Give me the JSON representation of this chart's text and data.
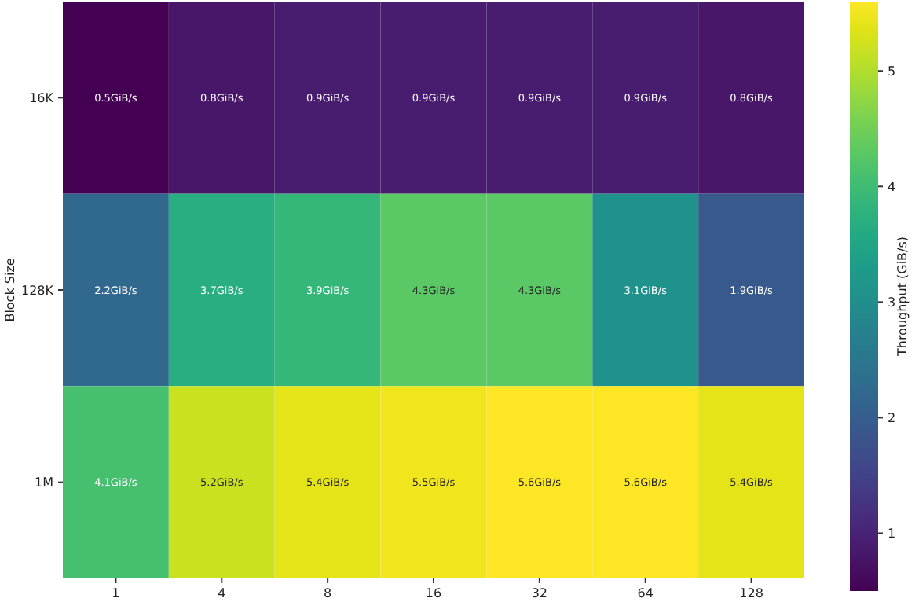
{
  "chart_data": {
    "type": "heatmap",
    "xlabel": null,
    "ylabel": "Block Size",
    "clabel": "Throughput (GiB/s)",
    "categories": [
      "1",
      "4",
      "8",
      "16",
      "32",
      "64",
      "128"
    ],
    "y_categories": [
      "16K",
      "128K",
      "1M"
    ],
    "cells": [
      [
        0.5,
        0.8,
        0.9,
        0.9,
        0.9,
        0.9,
        0.8
      ],
      [
        2.2,
        3.7,
        3.9,
        4.3,
        4.3,
        3.1,
        1.9
      ],
      [
        4.1,
        5.2,
        5.4,
        5.5,
        5.6,
        5.6,
        5.4
      ]
    ],
    "cell_labels": [
      [
        "0.5GiB/s",
        "0.8GiB/s",
        "0.9GiB/s",
        "0.9GiB/s",
        "0.9GiB/s",
        "0.9GiB/s",
        "0.8GiB/s"
      ],
      [
        "2.2GiB/s",
        "3.7GiB/s",
        "3.9GiB/s",
        "4.3GiB/s",
        "4.3GiB/s",
        "3.1GiB/s",
        "1.9GiB/s"
      ],
      [
        "4.1GiB/s",
        "5.2GiB/s",
        "5.4GiB/s",
        "5.5GiB/s",
        "5.6GiB/s",
        "5.6GiB/s",
        "5.4GiB/s"
      ]
    ],
    "clim": [
      0.5,
      5.6
    ],
    "cticks": [
      1,
      2,
      3,
      4,
      5
    ]
  }
}
